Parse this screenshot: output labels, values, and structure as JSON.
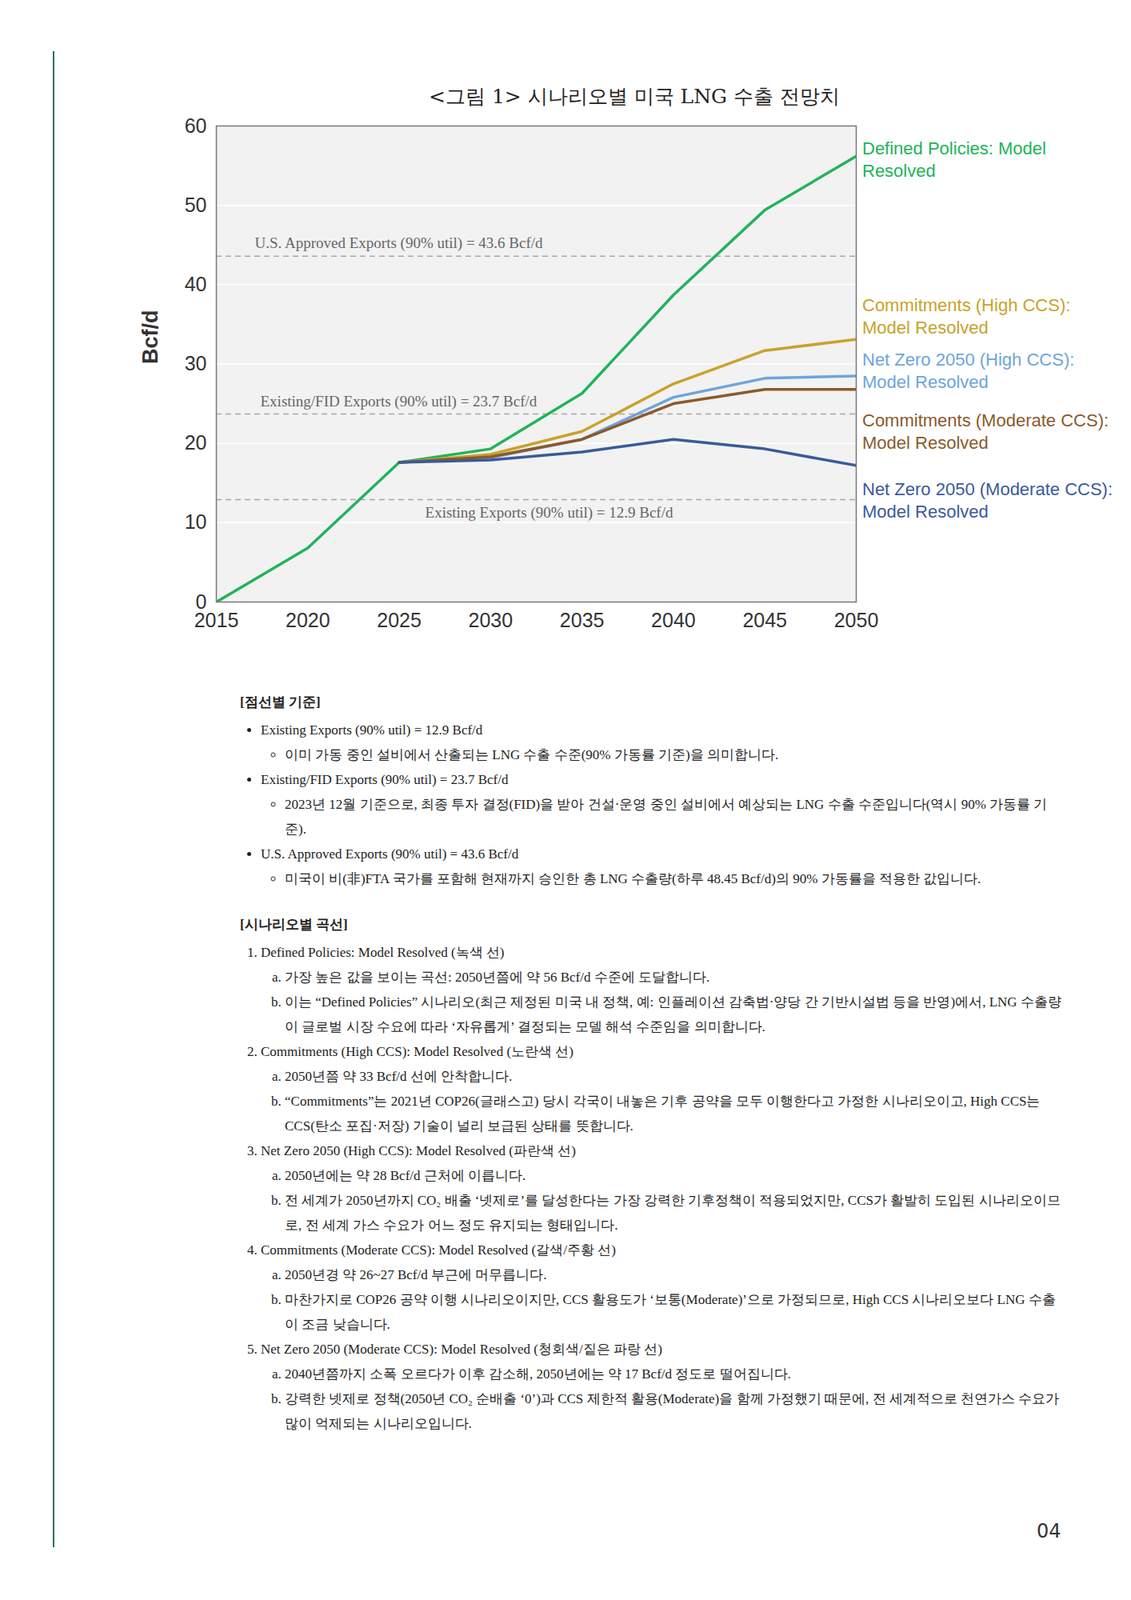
{
  "chart_data": {
    "type": "line",
    "title": "<그림 1> 시나리오별 미국 LNG 수출 전망치",
    "x": [
      2015,
      2020,
      2025,
      2030,
      2035,
      2040,
      2045,
      2050
    ],
    "xlim": [
      2015,
      2050
    ],
    "xticks": [
      2015,
      2020,
      2025,
      2030,
      2035,
      2040,
      2045,
      2050
    ],
    "ylim": [
      0,
      60
    ],
    "yticks": [
      0,
      10,
      20,
      30,
      40,
      50,
      60
    ],
    "ylabel": "Bcf/d",
    "grid": true,
    "legend": "right",
    "series": [
      {
        "name": "Defined Policies: Model Resolved",
        "color": "#22b35a",
        "line_style": "solid",
        "values": [
          0,
          6.8,
          17.6,
          19.3,
          26.3,
          38.7,
          49.4,
          56.2
        ]
      },
      {
        "name": "Commitments (High CCS): Model Resolved",
        "color": "#c9a22a",
        "line_style": "solid",
        "values": [
          null,
          null,
          17.6,
          18.6,
          21.5,
          27.5,
          31.7,
          33.1
        ]
      },
      {
        "name": "Net Zero 2050 (High CCS): Model Resolved",
        "color": "#6ea4dc",
        "line_style": "solid",
        "values": [
          null,
          null,
          17.6,
          18.2,
          20.5,
          25.8,
          28.2,
          28.5
        ]
      },
      {
        "name": "Commitments (Moderate CCS): Model Resolved",
        "color": "#8b5a2b",
        "line_style": "solid",
        "values": [
          null,
          null,
          17.6,
          18.3,
          20.5,
          25.0,
          26.8,
          26.8
        ]
      },
      {
        "name": "Net Zero 2050 (Moderate CCS): Model Resolved",
        "color": "#3a5a9a",
        "line_style": "solid",
        "values": [
          null,
          null,
          17.6,
          17.9,
          18.9,
          20.5,
          19.3,
          17.2
        ]
      }
    ],
    "reference_lines": [
      {
        "value": 43.6,
        "label": "U.S. Approved Exports (90% util) = 43.6 Bcf/d",
        "line_style": "dashed"
      },
      {
        "value": 23.7,
        "label": "Existing/FID Exports (90% util) = 23.7 Bcf/d",
        "line_style": "dashed"
      },
      {
        "value": 12.9,
        "label": "Existing Exports (90% util) = 12.9 Bcf/d",
        "line_style": "dashed"
      }
    ]
  },
  "document": {
    "sections": [
      {
        "heading": "[점선별 기준]",
        "list_style": "bullet",
        "items": [
          {
            "text": "Existing Exports (90% util) = 12.9 Bcf/d",
            "subitems": [
              "이미 가동 중인 설비에서 산출되는 LNG 수출 수준(90% 가동률 기준)을 의미합니다."
            ]
          },
          {
            "text": "Existing/FID Exports (90% util) = 23.7 Bcf/d",
            "subitems": [
              "2023년 12월 기준으로, 최종 투자 결정(FID)을 받아 건설·운영 중인 설비에서 예상되는 LNG 수출 수준입니다(역시 90% 가동률 기준)."
            ]
          },
          {
            "text": "U.S. Approved Exports (90% util) = 43.6 Bcf/d",
            "subitems": [
              "미국이 비(非)FTA 국가를 포함해 현재까지 승인한 총 LNG 수출량(하루 48.45 Bcf/d)의 90% 가동률을 적용한 값입니다."
            ]
          }
        ]
      },
      {
        "heading": "[시나리오별 곡선]",
        "list_style": "numbered",
        "items": [
          {
            "text": "Defined Policies: Model Resolved (녹색 선)",
            "subitems": [
              "가장 높은 값을 보이는 곡선: 2050년쯤에 약 56 Bcf/d 수준에 도달합니다.",
              "이는 “Defined Policies” 시나리오(최근 제정된 미국 내 정책, 예: 인플레이션 감축법·양당 간 기반시설법 등을 반영)에서, LNG 수출량이 글로벌 시장 수요에 따라 ‘자유롭게’ 결정되는 모델 해석 수준임을 의미합니다."
            ]
          },
          {
            "text": "Commitments (High CCS): Model Resolved (노란색 선)",
            "subitems": [
              "2050년쯤 약 33 Bcf/d 선에 안착합니다.",
              "“Commitments”는 2021년 COP26(글래스고) 당시 각국이 내놓은 기후 공약을 모두 이행한다고 가정한 시나리오이고, High CCS는 CCS(탄소 포집·저장) 기술이 널리 보급된 상태를 뜻합니다."
            ]
          },
          {
            "text": "Net Zero 2050 (High CCS): Model Resolved (파란색 선)",
            "subitems": [
              "2050년에는 약 28 Bcf/d 근처에 이릅니다.",
              "전 세계가 2050년까지 CO₂ 배출 ‘넷제로’를 달성한다는 가장 강력한 기후정책이 적용되었지만, CCS가 활발히 도입된 시나리오이므로, 전 세계 가스 수요가 어느 정도 유지되는 형태입니다."
            ]
          },
          {
            "text": "Commitments (Moderate CCS): Model Resolved (갈색/주황 선)",
            "subitems": [
              "2050년경 약 26~27 Bcf/d 부근에 머무릅니다.",
              "마찬가지로 COP26 공약 이행 시나리오이지만, CCS 활용도가 ‘보통(Moderate)’으로 가정되므로, High CCS 시나리오보다 LNG 수출이 조금 낮습니다."
            ]
          },
          {
            "text": "Net Zero 2050 (Moderate CCS): Model Resolved (청회색/짙은 파랑 선)",
            "subitems": [
              "2040년쯤까지 소폭 오르다가 이후 감소해, 2050년에는 약 17 Bcf/d 정도로 떨어집니다.",
              "강력한 넷제로 정책(2050년 CO₂ 순배출 ‘0’)과 CCS 제한적 활용(Moderate)을 함께 가정했기 때문에, 전 세계적으로 천연가스 수요가 많이 억제되는 시나리오입니다."
            ]
          }
        ]
      }
    ],
    "page_number": "04"
  }
}
